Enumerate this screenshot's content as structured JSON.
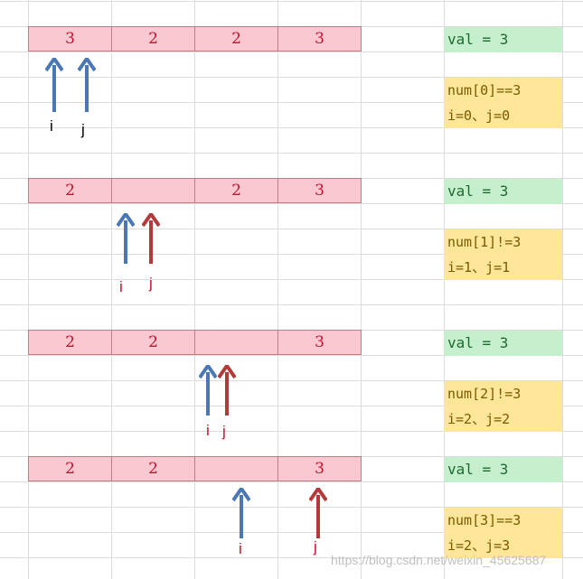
{
  "colors": {
    "cell_fill": "#f9c8d0",
    "cell_text": "#c8102e",
    "val_fill": "#c6efce",
    "info_fill": "#ffe699",
    "arrow_blue": "#4a78b5",
    "arrow_red": "#b33a3a"
  },
  "steps": [
    {
      "cells": [
        "3",
        "2",
        "2",
        "3"
      ],
      "val": "val = 3",
      "info": [
        "num[0]==3",
        "i=0、j=0"
      ],
      "i_label": "i",
      "j_label": "j"
    },
    {
      "cells": [
        "2",
        "",
        "2",
        "3"
      ],
      "val": "val = 3",
      "info": [
        "num[1]!=3",
        "i=1、j=1"
      ],
      "i_label": "i",
      "j_label": "j"
    },
    {
      "cells": [
        "2",
        "2",
        "",
        "3"
      ],
      "val": "val = 3",
      "info": [
        "num[2]!=3",
        "i=2、j=2"
      ],
      "i_label": "i",
      "j_label": "j"
    },
    {
      "cells": [
        "2",
        "2",
        "",
        "3"
      ],
      "val": "val = 3",
      "info": [
        "num[3]==3",
        "i=2、j=3"
      ],
      "i_label": "i",
      "j_label": "j"
    }
  ],
  "watermark": "https://blog.csdn.net/weixin_45625687"
}
